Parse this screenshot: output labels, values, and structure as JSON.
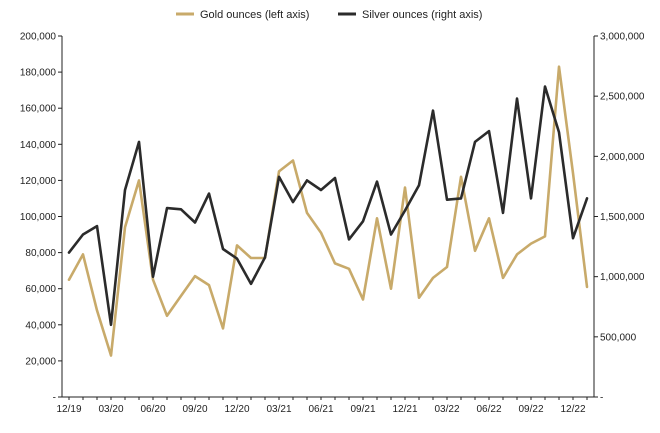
{
  "chart_data": {
    "type": "line",
    "title": "",
    "xlabel": "",
    "ylabel": "",
    "colors": {
      "gold": "#c8aa6a",
      "silver": "#2b2b2b",
      "axis": "#222222"
    },
    "x_tick_labels": [
      "12/19",
      "03/20",
      "06/20",
      "09/20",
      "12/20",
      "03/21",
      "06/21",
      "09/21",
      "12/21",
      "03/22",
      "06/22",
      "09/22",
      "12/22"
    ],
    "left_axis": {
      "ylim": [
        0,
        200000
      ],
      "tick_labels": [
        "-",
        "20,000",
        "40,000",
        "60,000",
        "80,000",
        "100,000",
        "120,000",
        "140,000",
        "160,000",
        "180,000",
        "200,000"
      ]
    },
    "right_axis": {
      "ylim": [
        0,
        3000000
      ],
      "tick_labels": [
        "-",
        "500,000",
        "1,000,000",
        "1,500,000",
        "2,000,000",
        "2,500,000",
        "3,000,000"
      ]
    },
    "legend": {
      "placement": "top-center"
    },
    "series": [
      {
        "name": "Gold ounces (left axis)",
        "axis": "left",
        "values": [
          65000,
          79000,
          48000,
          23000,
          94000,
          120000,
          65000,
          45000,
          56000,
          67000,
          62000,
          38000,
          84000,
          77000,
          77000,
          125000,
          131000,
          102000,
          91000,
          74000,
          71000,
          54000,
          99000,
          60000,
          116000,
          55000,
          66000,
          72000,
          122000,
          81000,
          99000,
          66000,
          79000,
          85000,
          89000,
          183000,
          124000,
          61000
        ]
      },
      {
        "name": "Silver ounces (right axis)",
        "axis": "right",
        "values": [
          1200000,
          1350000,
          1420000,
          600000,
          1720000,
          2120000,
          1000000,
          1570000,
          1560000,
          1450000,
          1690000,
          1230000,
          1150000,
          940000,
          1160000,
          1830000,
          1620000,
          1800000,
          1720000,
          1820000,
          1310000,
          1460000,
          1790000,
          1350000,
          1550000,
          1760000,
          2380000,
          1640000,
          1650000,
          2120000,
          2210000,
          1530000,
          2480000,
          1650000,
          2580000,
          2200000,
          1320000,
          1650000
        ]
      }
    ]
  }
}
